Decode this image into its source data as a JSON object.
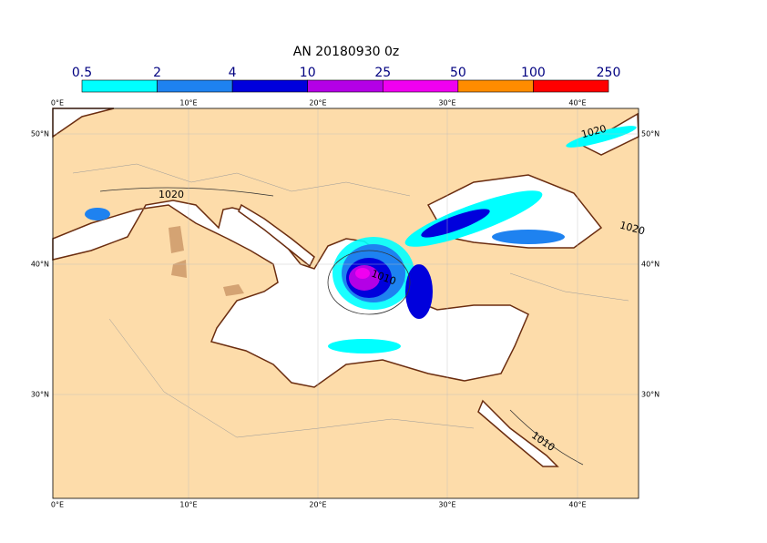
{
  "title": "AN  20180930 0z",
  "colorbar": {
    "labels": [
      0.5,
      2,
      4,
      10,
      25,
      50,
      100,
      250
    ],
    "colors": [
      "#00ffff",
      "#1e82f0",
      "#0000dc",
      "#b400e6",
      "#f000f0",
      "#ff8c00",
      "#ff0000"
    ]
  },
  "lon_labels": [
    "0°E",
    "10°E",
    "20°E",
    "30°E",
    "40°E"
  ],
  "lat_labels": [
    "50°N",
    "40°N",
    "30°N"
  ],
  "contour_labels": [
    "1020",
    "1020",
    "1020",
    "1010",
    "1010"
  ]
}
